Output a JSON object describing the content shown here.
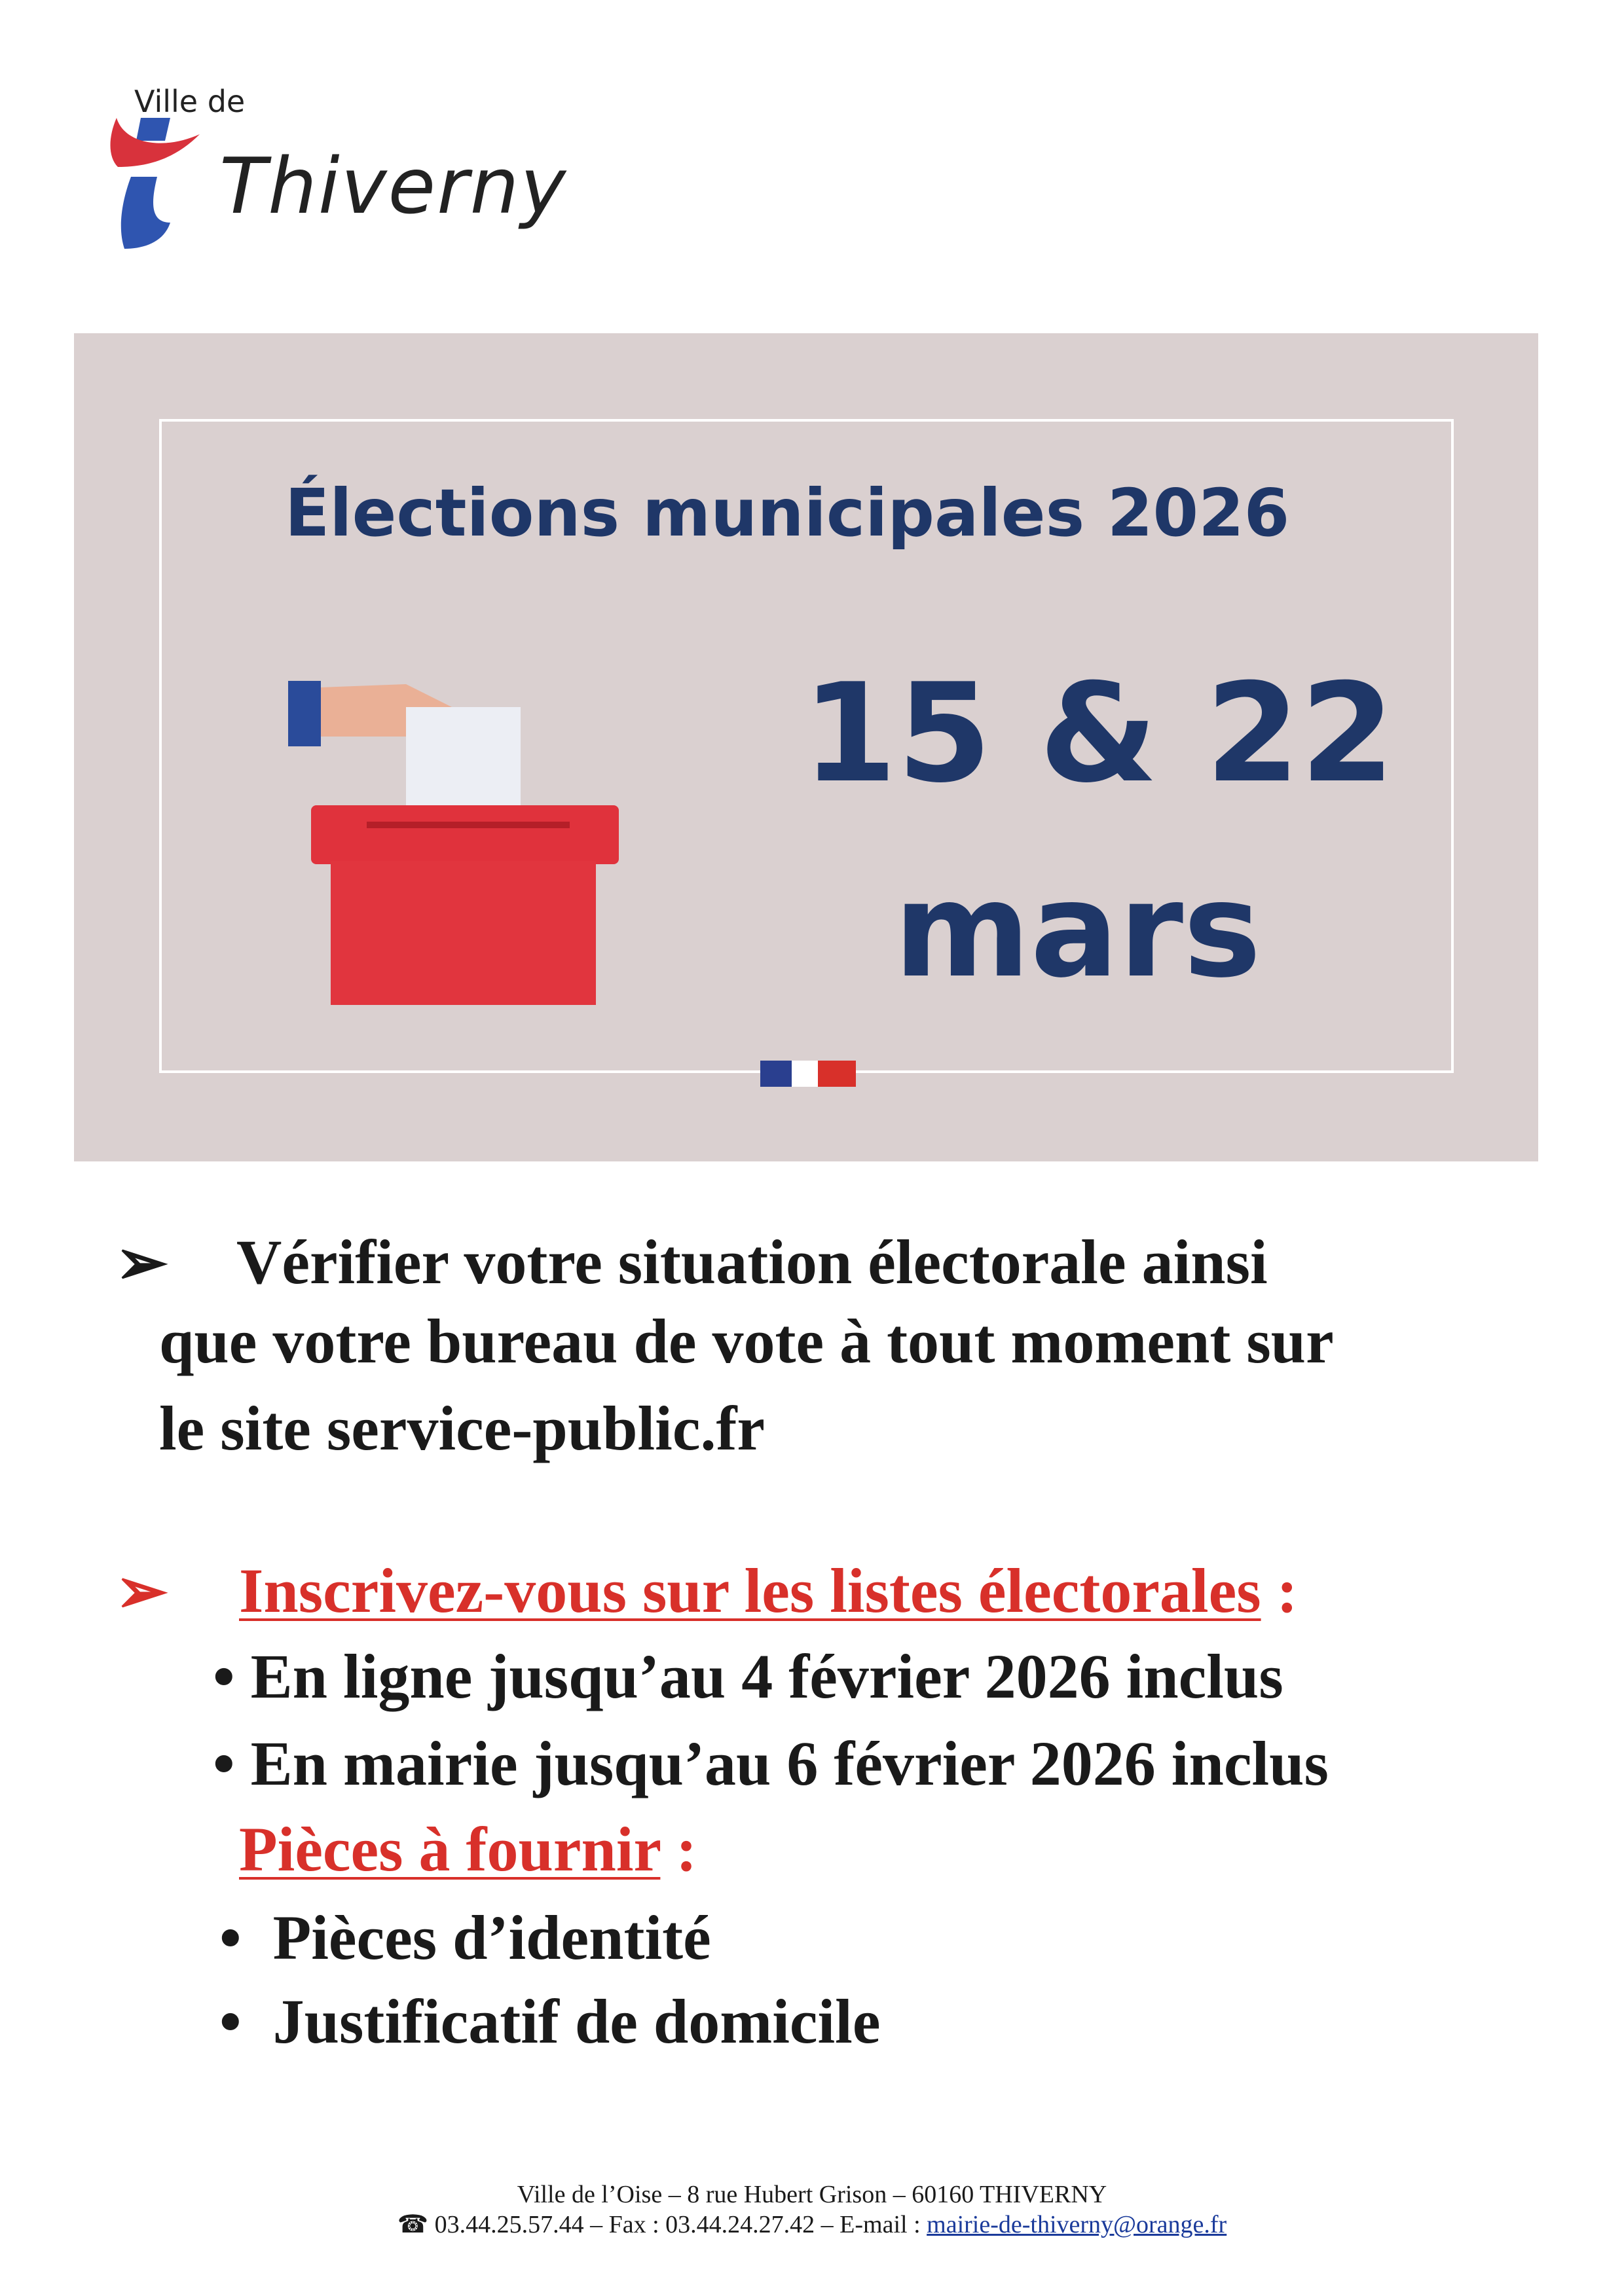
{
  "logo": {
    "prefix": "Ville de",
    "name": "Thiverny",
    "colors": {
      "red": "#d8323c",
      "blue": "#2f55b0"
    }
  },
  "banner": {
    "title": "Élections municipales 2026",
    "dates": "15 & 22",
    "month": "mars",
    "background": "#dad0d0",
    "text_color": "#1f3768",
    "icons": [
      "ballot-box-icon",
      "french-flag-icon"
    ]
  },
  "section1": {
    "bullet": "➢",
    "lines": [
      "Vérifier votre situation électorale ainsi",
      "que votre bureau de vote à tout moment sur",
      "le site service-public.fr"
    ]
  },
  "section2": {
    "bullet": "➢",
    "heading": "Inscrivez-vous sur les listes électorales",
    "colon": " :",
    "items": [
      "En ligne jusqu’au 4 février 2026 inclus",
      "En mairie jusqu’au 6 février 2026 inclus"
    ],
    "pieces_heading": "Pièces à fournir",
    "pieces_colon": " :",
    "pieces": [
      "Pièces d’identité",
      "Justificatif de domicile"
    ],
    "accent": "#d8302a"
  },
  "footer": {
    "address": "Ville de l’Oise – 8 rue Hubert Grison – 60160 THIVERNY",
    "contact": "03.44.25.57.44 – Fax : 03.44.24.27.42 – E-mail : ",
    "email": "mairie-de-thiverny@orange.fr",
    "phone_icon": "☎"
  }
}
